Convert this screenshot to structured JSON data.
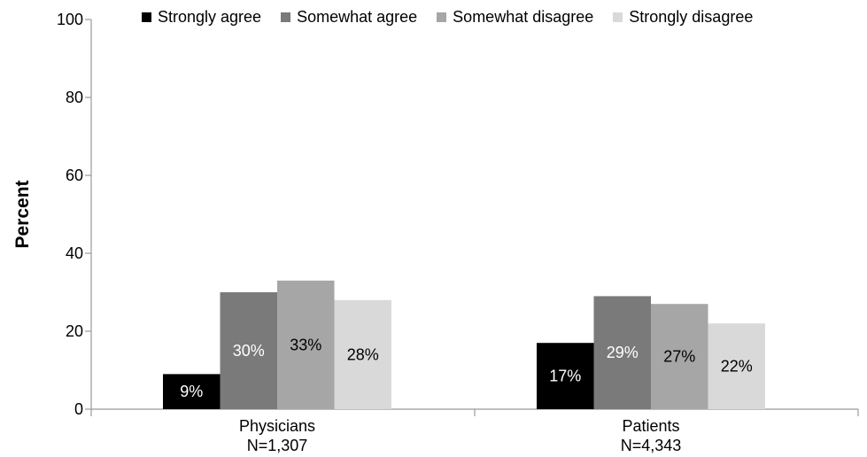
{
  "chart_data": {
    "type": "bar",
    "ylabel": "Percent",
    "ylim": [
      0,
      100
    ],
    "yticks": [
      "0",
      "20",
      "40",
      "60",
      "80",
      "100"
    ],
    "grid": false,
    "legend_position": "top",
    "categories": [
      {
        "line1": "Physicians",
        "line2": "N=1,307"
      },
      {
        "line1": "Patients",
        "line2": "N=4,343"
      }
    ],
    "series": [
      {
        "name": "Strongly agree",
        "color": "#000000",
        "label_color": "#ffffff",
        "values": [
          9,
          17
        ],
        "labels": [
          "9%",
          "17%"
        ]
      },
      {
        "name": "Somewhat agree",
        "color": "#7a7a7a",
        "label_color": "#ffffff",
        "values": [
          30,
          29
        ],
        "labels": [
          "30%",
          "29%"
        ]
      },
      {
        "name": "Somewhat disagree",
        "color": "#a6a6a6",
        "label_color": "#000000",
        "values": [
          33,
          27
        ],
        "labels": [
          "33%",
          "27%"
        ]
      },
      {
        "name": "Strongly disagree",
        "color": "#d9d9d9",
        "label_color": "#000000",
        "values": [
          28,
          22
        ],
        "labels": [
          "28%",
          "22%"
        ]
      }
    ]
  }
}
